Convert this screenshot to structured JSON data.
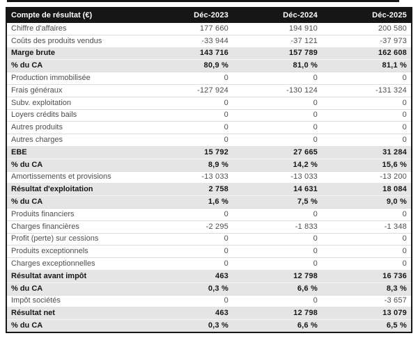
{
  "colors": {
    "header-bg": "#161616",
    "band-bg": "#e5e5e5",
    "normal-text": "#4e4e4e",
    "border": "#161616"
  },
  "chart_data": {
    "type": "table",
    "title": "Compte de résultat (€)",
    "columns": [
      "Déc-2023",
      "Déc-2024",
      "Déc-2025"
    ],
    "rows": [
      {
        "label": "Chiffre d'affaires",
        "values": [
          "177 660",
          "194 910",
          "200 580"
        ],
        "style": "normal"
      },
      {
        "label": "Coûts des produits vendus",
        "values": [
          "-33 944",
          "-37 121",
          "-37 973"
        ],
        "style": "normal"
      },
      {
        "label": "Marge brute",
        "values": [
          "143 716",
          "157 789",
          "162 608"
        ],
        "style": "bold"
      },
      {
        "label": "% du CA",
        "values": [
          "80,9 %",
          "81,0 %",
          "81,1 %"
        ],
        "style": "bold"
      },
      {
        "label": "Production immobilisée",
        "values": [
          "0",
          "0",
          "0"
        ],
        "style": "normal"
      },
      {
        "label": "Frais généraux",
        "values": [
          "-127 924",
          "-130 124",
          "-131 324"
        ],
        "style": "normal"
      },
      {
        "label": "Subv. exploitation",
        "values": [
          "0",
          "0",
          "0"
        ],
        "style": "normal"
      },
      {
        "label": "Loyers crédits bails",
        "values": [
          "0",
          "0",
          "0"
        ],
        "style": "normal"
      },
      {
        "label": "Autres produits",
        "values": [
          "0",
          "0",
          "0"
        ],
        "style": "normal"
      },
      {
        "label": "Autres charges",
        "values": [
          "0",
          "0",
          "0"
        ],
        "style": "normal"
      },
      {
        "label": "EBE",
        "values": [
          "15 792",
          "27 665",
          "31 284"
        ],
        "style": "bold"
      },
      {
        "label": "% du CA",
        "values": [
          "8,9 %",
          "14,2 %",
          "15,6 %"
        ],
        "style": "bold"
      },
      {
        "label": "Amortissements et provisions",
        "values": [
          "-13 033",
          "-13 033",
          "-13 200"
        ],
        "style": "normal"
      },
      {
        "label": "Résultat d'exploitation",
        "values": [
          "2 758",
          "14 631",
          "18 084"
        ],
        "style": "bold"
      },
      {
        "label": "% du CA",
        "values": [
          "1,6 %",
          "7,5 %",
          "9,0 %"
        ],
        "style": "bold"
      },
      {
        "label": "Produits financiers",
        "values": [
          "0",
          "0",
          "0"
        ],
        "style": "normal"
      },
      {
        "label": "Charges financières",
        "values": [
          "-2 295",
          "-1 833",
          "-1 348"
        ],
        "style": "normal"
      },
      {
        "label": "Profit (perte) sur cessions",
        "values": [
          "0",
          "0",
          "0"
        ],
        "style": "normal"
      },
      {
        "label": "Produits exceptionnels",
        "values": [
          "0",
          "0",
          "0"
        ],
        "style": "normal"
      },
      {
        "label": "Charges exceptionnelles",
        "values": [
          "0",
          "0",
          "0"
        ],
        "style": "normal"
      },
      {
        "label": "Résultat avant impôt",
        "values": [
          "463",
          "12 798",
          "16 736"
        ],
        "style": "bold"
      },
      {
        "label": "% du CA",
        "values": [
          "0,3 %",
          "6,6 %",
          "8,3 %"
        ],
        "style": "bold"
      },
      {
        "label": "Impôt sociétés",
        "values": [
          "0",
          "0",
          "-3 657"
        ],
        "style": "normal"
      },
      {
        "label": "Résultat net",
        "values": [
          "463",
          "12 798",
          "13 079"
        ],
        "style": "bold"
      },
      {
        "label": "% du CA",
        "values": [
          "0,3 %",
          "6,6 %",
          "6,5 %"
        ],
        "style": "bold"
      }
    ]
  }
}
